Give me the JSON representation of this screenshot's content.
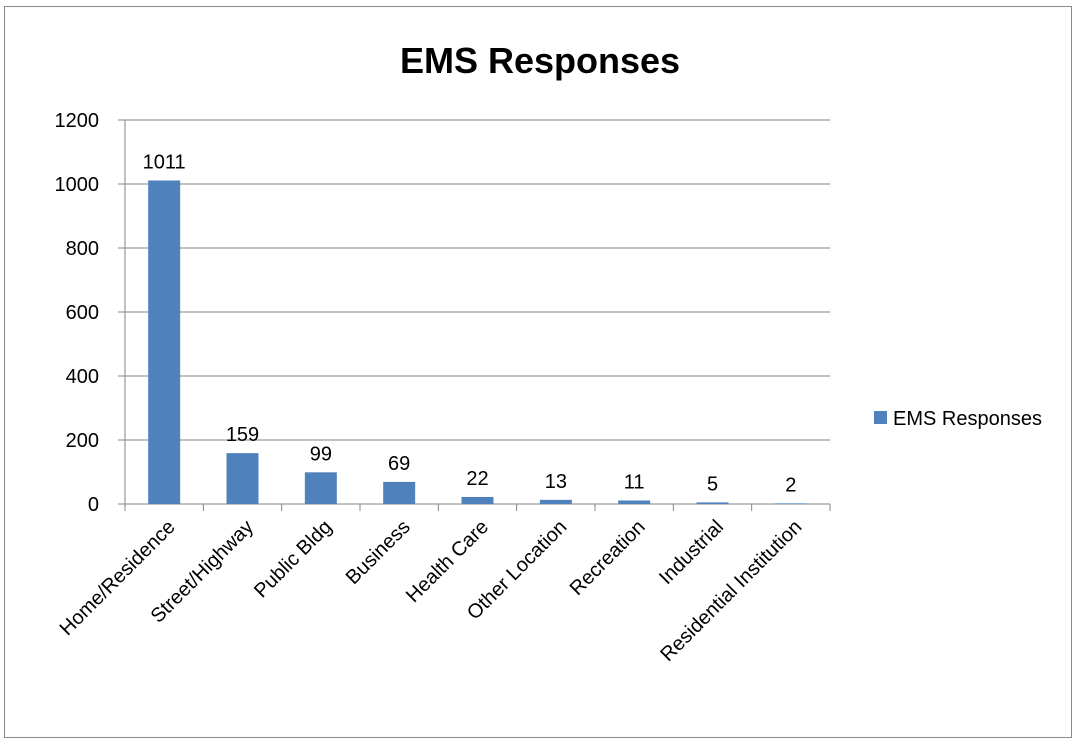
{
  "chart_data": {
    "type": "bar",
    "title": "EMS Responses",
    "categories": [
      "Home/Residence",
      "Street/Highway",
      "Public Bldg",
      "Business",
      "Health Care",
      "Other Location",
      "Recreation",
      "Industrial",
      "Residential Institution"
    ],
    "series": [
      {
        "name": "EMS Responses",
        "values": [
          1011,
          159,
          99,
          69,
          22,
          13,
          11,
          5,
          2
        ]
      }
    ],
    "xlabel": "",
    "ylabel": "",
    "ylim": [
      0,
      1200
    ],
    "yticks": [
      0,
      200,
      400,
      600,
      800,
      1000,
      1200
    ],
    "grid": true,
    "legend_position": "right",
    "bar_color": "#4f81bd",
    "data_labels": true
  }
}
